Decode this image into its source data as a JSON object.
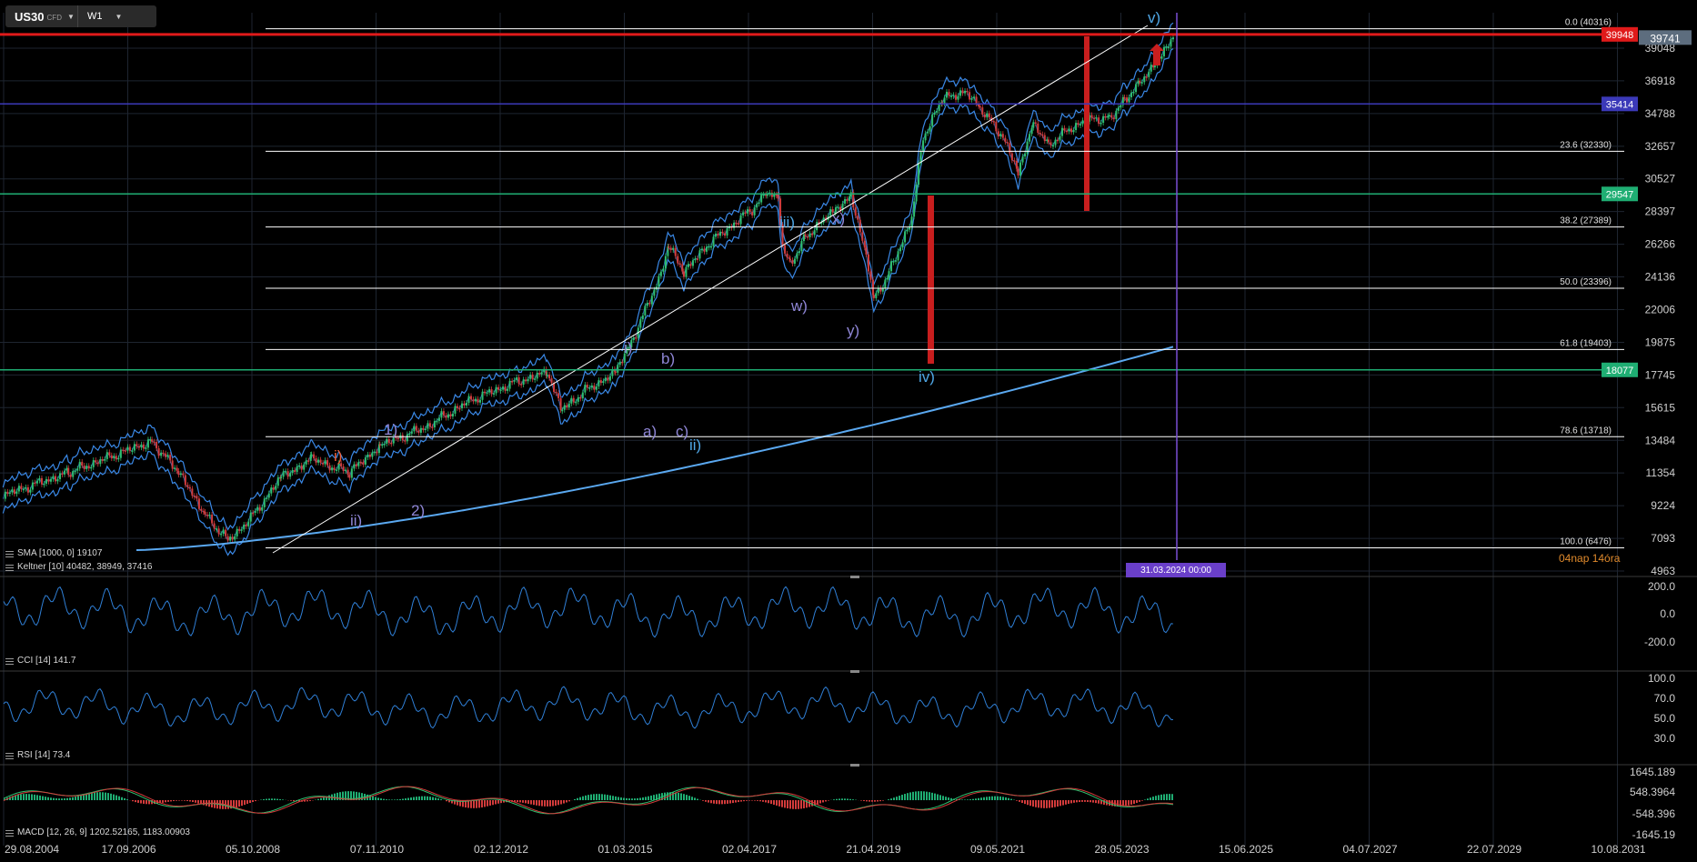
{
  "toolbar": {
    "symbol": "US30",
    "symbol_suffix": "CFD",
    "timeframe": "W1"
  },
  "colors": {
    "background": "#000000",
    "grid": "#1e2530",
    "wave_blue": "#4fa7e6",
    "wave_purple": "#8f86d6",
    "wave_orange": "#f0603a",
    "red_level": "#e01a1a",
    "navy_level": "#3b39b8",
    "green_level": "#1fae73",
    "vline": "#7b4fd6"
  },
  "price_axis": {
    "ticks": [
      "39048",
      "36918",
      "34788",
      "32657",
      "30527",
      "28397",
      "26266",
      "24136",
      "22006",
      "19875",
      "17745",
      "15615",
      "13484",
      "11354",
      "9224",
      "7093",
      "4963"
    ]
  },
  "time_axis": {
    "ticks": [
      "29.08.2004",
      "17.09.2006",
      "05.10.2008",
      "07.11.2010",
      "02.12.2012",
      "01.03.2015",
      "02.04.2017",
      "21.04.2019",
      "09.05.2021",
      "28.05.2023",
      "15.06.2025",
      "04.07.2027",
      "22.07.2029",
      "10.08.2031"
    ]
  },
  "levels": [
    {
      "price": 39948,
      "label": "39948",
      "color": "#e01a1a"
    },
    {
      "price": 35414,
      "label": "35414",
      "color": "#3b39b8"
    },
    {
      "price": 29547,
      "label": "29547",
      "color": "#1fae73"
    },
    {
      "price": 18077,
      "label": "18077",
      "color": "#1fae73"
    }
  ],
  "current_price": {
    "price": 39741,
    "label": "39741"
  },
  "fibonacci": [
    {
      "price": 40316,
      "label": "0.0 (40316)"
    },
    {
      "price": 32330,
      "label": "23.6 (32330)"
    },
    {
      "price": 27389,
      "label": "38.2 (27389)"
    },
    {
      "price": 23396,
      "label": "50.0 (23396)"
    },
    {
      "price": 19403,
      "label": "61.8 (19403)"
    },
    {
      "price": 13718,
      "label": "78.6 (13718)"
    },
    {
      "price": 6476,
      "label": "100.0 (6476)"
    }
  ],
  "waves": [
    {
      "text": "i)",
      "color": "#f0603a"
    },
    {
      "text": "ii)",
      "color": "#8f86d6"
    },
    {
      "text": "1)",
      "color": "#8f86d6"
    },
    {
      "text": "2)",
      "color": "#8f86d6"
    },
    {
      "text": "i)",
      "color": "#8f86d6"
    },
    {
      "text": "b)",
      "color": "#8f86d6"
    },
    {
      "text": "a)",
      "color": "#8f86d6"
    },
    {
      "text": "c)",
      "color": "#8f86d6"
    },
    {
      "text": "ii)",
      "color": "#4fa7e6"
    },
    {
      "text": "iii)",
      "color": "#4fa7e6"
    },
    {
      "text": "x)",
      "color": "#8f86d6"
    },
    {
      "text": "w)",
      "color": "#8f86d6"
    },
    {
      "text": "y)",
      "color": "#8f86d6"
    },
    {
      "text": "iv)",
      "color": "#4fa7e6"
    },
    {
      "text": "v)",
      "color": "#4fa7e6"
    }
  ],
  "indicators": {
    "sma": "SMA [1000, 0] 19107",
    "keltner": "Keltner [10] 40482, 38949, 37416",
    "cci": {
      "label": "CCI [14] 141.7",
      "ticks": [
        "200.0",
        "0.0",
        "-200.0"
      ]
    },
    "rsi": {
      "label": "RSI [14] 73.4",
      "ticks": [
        "100.0",
        "70.0",
        "50.0",
        "30.0"
      ]
    },
    "macd": {
      "label": "MACD [12, 26, 9] 1202.52165,  1183.00903",
      "ticks": [
        "1645.189",
        "548.3964",
        "-548.396",
        "-1645.19"
      ]
    }
  },
  "crosshair_time": "31.03.2024 00:00",
  "countdown": "04nap 14óra"
}
